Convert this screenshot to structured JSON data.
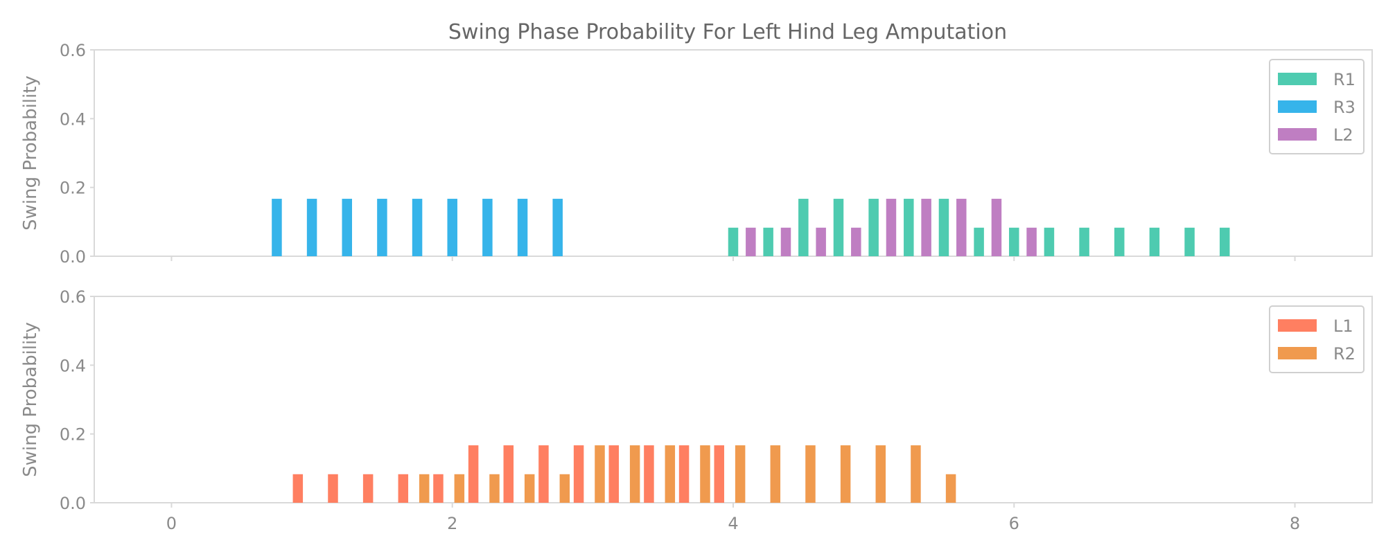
{
  "chart_data": {
    "type": "bar",
    "title": "Swing Phase Probability For Left Hind Leg Amputation",
    "xlim": [
      -0.55,
      8.55
    ],
    "xticks": [
      0,
      2,
      4,
      6,
      8
    ],
    "panels": [
      {
        "ylabel": "Swing Probability",
        "ylim": [
          0,
          0.6
        ],
        "yticks": [
          "0.0",
          "0.2",
          "0.4",
          "0.6"
        ],
        "legend_position": "top-right",
        "series": [
          {
            "name": "R1",
            "color": "#4ecbb0",
            "x": [
              4.0,
              4.25,
              4.5,
              4.75,
              5.0,
              5.25,
              5.5,
              5.75,
              6.0,
              6.25,
              6.5,
              6.75,
              7.0,
              7.25,
              7.5
            ],
            "values": [
              0.083,
              0.083,
              0.167,
              0.167,
              0.167,
              0.167,
              0.167,
              0.083,
              0.083,
              0.083,
              0.083,
              0.083,
              0.083,
              0.083,
              0.083
            ]
          },
          {
            "name": "R3",
            "color": "#36b4ea",
            "x": [
              0.75,
              1.0,
              1.25,
              1.5,
              1.75,
              2.0,
              2.25,
              2.5,
              2.75
            ],
            "values": [
              0.167,
              0.167,
              0.167,
              0.167,
              0.167,
              0.167,
              0.167,
              0.167,
              0.167
            ]
          },
          {
            "name": "L2",
            "color": "#bf7ec2",
            "x": [
              4.125,
              4.375,
              4.625,
              4.875,
              5.125,
              5.375,
              5.625,
              5.875,
              6.125
            ],
            "values": [
              0.083,
              0.083,
              0.083,
              0.083,
              0.167,
              0.167,
              0.167,
              0.167,
              0.083
            ]
          }
        ]
      },
      {
        "ylabel": "Swing Probability",
        "ylim": [
          0,
          0.6
        ],
        "yticks": [
          "0.0",
          "0.2",
          "0.4",
          "0.6"
        ],
        "legend_position": "top-right",
        "series": [
          {
            "name": "L1",
            "color": "#ff7f61",
            "x": [
              0.9,
              1.15,
              1.4,
              1.65,
              1.9,
              2.15,
              2.4,
              2.65,
              2.9,
              3.15,
              3.4,
              3.65,
              3.9
            ],
            "values": [
              0.083,
              0.083,
              0.083,
              0.083,
              0.083,
              0.167,
              0.167,
              0.167,
              0.167,
              0.167,
              0.167,
              0.167,
              0.167
            ]
          },
          {
            "name": "R2",
            "color": "#f09a4e",
            "x": [
              1.8,
              2.05,
              2.3,
              2.55,
              2.8,
              3.05,
              3.3,
              3.55,
              3.8,
              4.05,
              4.3,
              4.55,
              4.8,
              5.05,
              5.3,
              5.55
            ],
            "values": [
              0.083,
              0.083,
              0.083,
              0.083,
              0.083,
              0.167,
              0.167,
              0.167,
              0.167,
              0.167,
              0.167,
              0.167,
              0.167,
              0.167,
              0.167,
              0.083
            ]
          }
        ]
      }
    ]
  }
}
